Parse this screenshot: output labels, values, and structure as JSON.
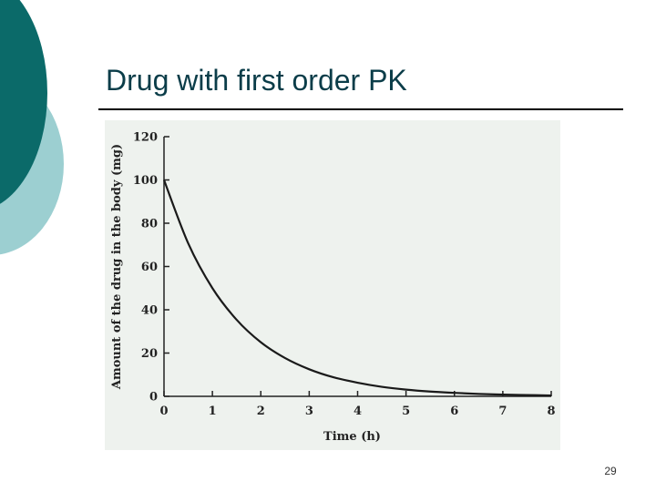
{
  "slide": {
    "title": "Drug with first order PK",
    "page_number": "29",
    "colors": {
      "dark_teal": "#0b6a69",
      "light_teal": "#9ccfd1",
      "title_text": "#0b3d49",
      "panel_bg": "#eef2ee"
    }
  },
  "chart_data": {
    "type": "line",
    "title": "",
    "xlabel": "Time (h)",
    "ylabel": "Amount of the drug in the body (mg)",
    "xlim": [
      0,
      8
    ],
    "ylim": [
      0,
      120
    ],
    "xticks": [
      0,
      1,
      2,
      3,
      4,
      5,
      6,
      7,
      8
    ],
    "yticks": [
      0,
      20,
      40,
      60,
      80,
      100,
      120
    ],
    "grid": false,
    "series": [
      {
        "x": [
          0,
          0.5,
          1,
          1.5,
          2,
          2.5,
          3,
          3.5,
          4,
          4.5,
          5,
          5.5,
          6,
          6.5,
          7,
          7.5,
          8
        ],
        "y": [
          100,
          70.7,
          50,
          35.4,
          25,
          17.7,
          12.5,
          8.8,
          6.3,
          4.4,
          3.1,
          2.2,
          1.6,
          1.1,
          0.8,
          0.6,
          0.4
        ]
      }
    ]
  }
}
